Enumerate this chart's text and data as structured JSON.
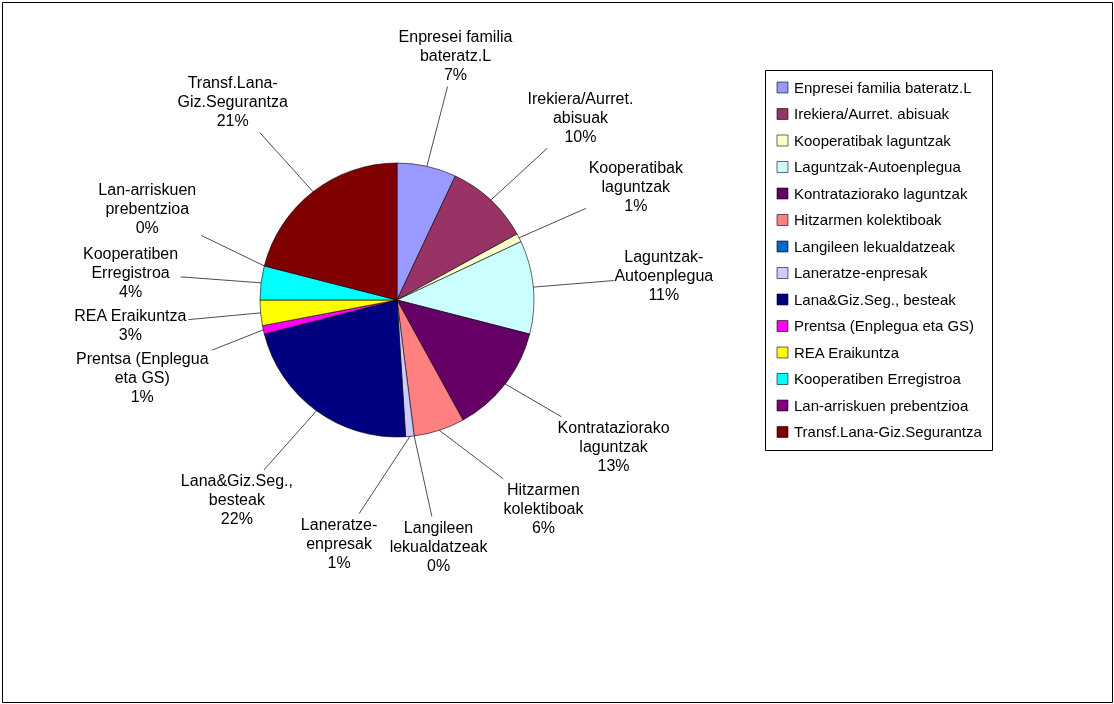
{
  "chart_data": {
    "type": "pie",
    "categories": [
      "Enpresei familia bateratz.L",
      "Irekiera/Aurret. abisuak",
      "Kooperatibak laguntzak",
      "Laguntzak-Autoenplegua",
      "Kontrataziorako laguntzak",
      "Hitzarmen kolektiboak",
      "Langileen lekualdatzeak",
      "Laneratze-enpresak",
      "Lana&Giz.Seg., besteak",
      "Prentsa (Enplegua eta GS)",
      "REA Eraikuntza",
      "Kooperatiben Erregistroa",
      "Lan-arriskuen prebentzioa",
      "Transf.Lana-Giz.Segurantza"
    ],
    "values": [
      7,
      10,
      1,
      11,
      13,
      6,
      0,
      1,
      22,
      1,
      3,
      4,
      0,
      21
    ],
    "value_labels": [
      "7%",
      "10%",
      "1%",
      "11%",
      "13%",
      "6%",
      "0%",
      "1%",
      "22%",
      "1%",
      "3%",
      "4%",
      "0%",
      "21%"
    ],
    "colors": [
      "#9999ff",
      "#993366",
      "#ffffcc",
      "#ccffff",
      "#660066",
      "#ff8080",
      "#0066cc",
      "#ccccff",
      "#000080",
      "#ff00ff",
      "#ffff00",
      "#00ffff",
      "#800080",
      "#800000"
    ],
    "legend": "right"
  }
}
